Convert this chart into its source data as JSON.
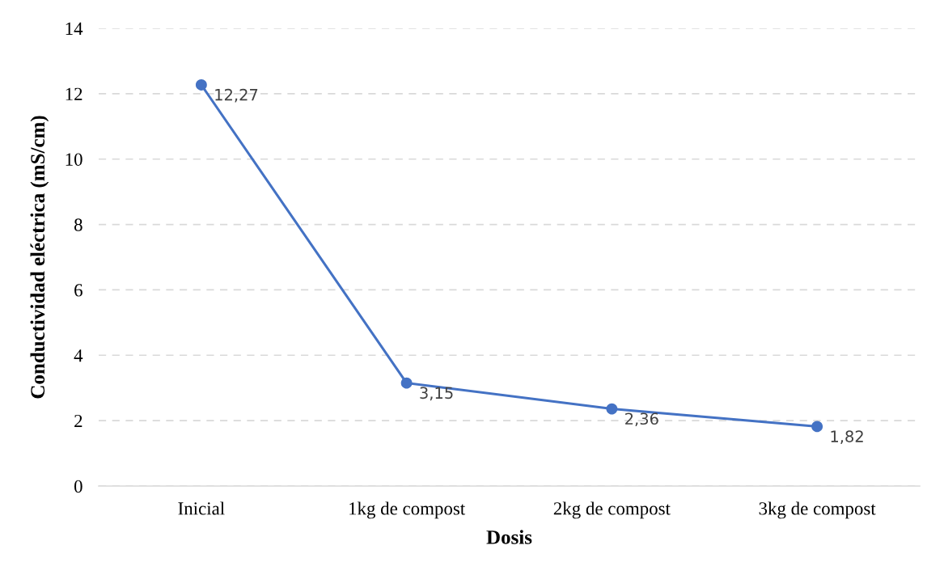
{
  "chart_data": {
    "type": "line",
    "xlabel": "Dosis",
    "ylabel": "Conductividad eléctrica (mS/cm)",
    "categories": [
      "Inicial",
      "1kg de compost",
      "2kg de compost",
      "3kg de compost"
    ],
    "series": [
      {
        "color": "#4472c4",
        "values": [
          12.27,
          3.15,
          2.36,
          1.82
        ],
        "value_labels": [
          "12,27",
          "3,15",
          "2,36",
          "1,82"
        ]
      }
    ],
    "ylim": [
      0,
      14
    ],
    "yticks": [
      0,
      2,
      4,
      6,
      8,
      10,
      12,
      14
    ],
    "grid": "y",
    "marker": "circle",
    "line_style": "solid"
  }
}
